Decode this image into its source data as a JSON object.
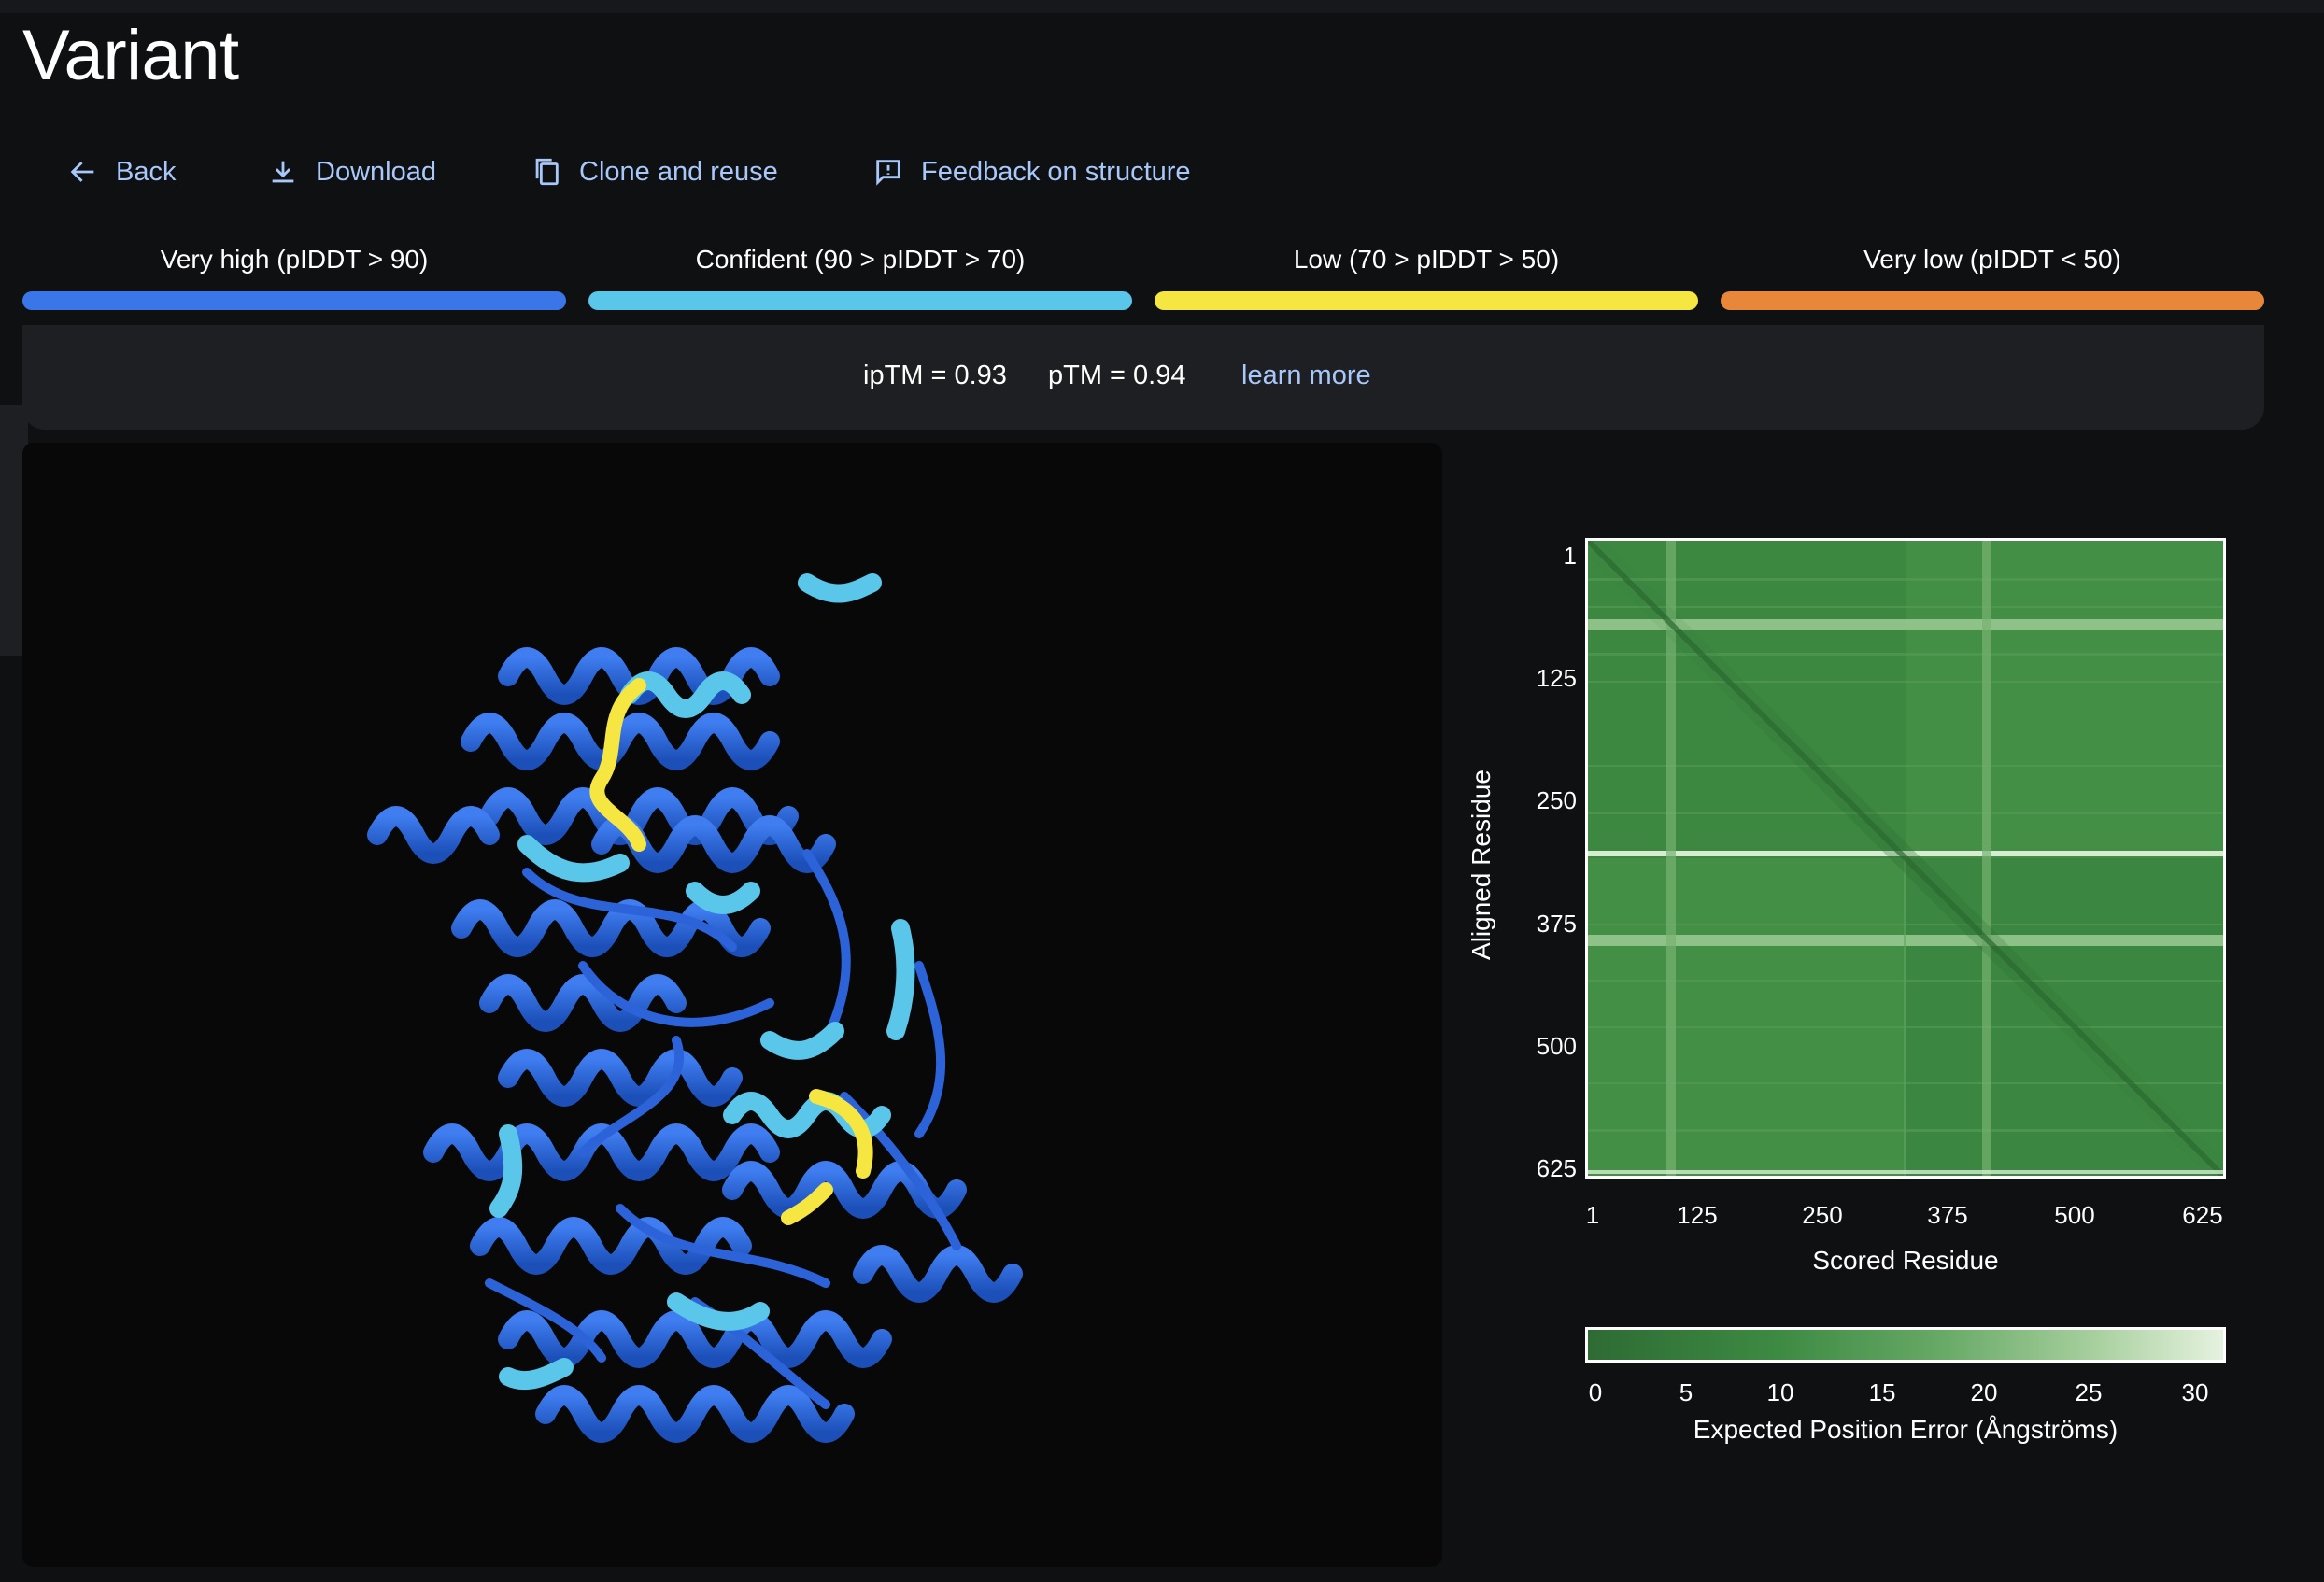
{
  "page": {
    "title": "Variant"
  },
  "toolbar": {
    "back_label": "Back",
    "download_label": "Download",
    "clone_label": "Clone and reuse",
    "feedback_label": "Feedback on structure"
  },
  "legend": {
    "items": [
      {
        "label": "Very high (pIDDT > 90)",
        "color": "#3b76e8"
      },
      {
        "label": "Confident (90 > pIDDT > 70)",
        "color": "#59c6ea"
      },
      {
        "label": "Low (70 > pIDDT > 50)",
        "color": "#f5e642"
      },
      {
        "label": "Very low (pIDDT < 50)",
        "color": "#e8873a"
      }
    ]
  },
  "metrics": {
    "iptm": "ipTM = 0.93",
    "ptm": "pTM = 0.94",
    "learn_more": "learn more"
  },
  "pae_chart": {
    "y_ticks": [
      "1",
      "125",
      "250",
      "375",
      "500",
      "625"
    ],
    "x_ticks": [
      "1",
      "125",
      "250",
      "375",
      "500",
      "625"
    ],
    "xlabel": "Scored Residue",
    "ylabel": "Aligned Residue",
    "colorbar_ticks": [
      "0",
      "5",
      "10",
      "15",
      "20",
      "25",
      "30"
    ],
    "colorbar_label": "Expected Position Error (Ångströms)"
  },
  "chart_data": {
    "type": "heatmap",
    "title": "",
    "xlabel": "Scored Residue",
    "ylabel": "Aligned Residue",
    "xlim": [
      1,
      625
    ],
    "ylim": [
      1,
      625
    ],
    "x_ticks": [
      1,
      125,
      250,
      375,
      500,
      625
    ],
    "y_ticks": [
      1,
      125,
      250,
      375,
      500,
      625
    ],
    "colorbar": {
      "min": 0,
      "max": 30,
      "ticks": [
        0,
        5,
        10,
        15,
        20,
        25,
        30
      ],
      "label": "Expected Position Error (Ångströms)",
      "low_color": "#2e6b34",
      "high_color": "#e6f2df"
    },
    "chain_boundary_residue": 313,
    "high_error_bands_residues": [
      80,
      313,
      395
    ],
    "typical_error_range": [
      2,
      6
    ]
  },
  "colors": {
    "accent": "#a8c7fa",
    "background": "#0f1012",
    "panel": "#1e1f22"
  }
}
